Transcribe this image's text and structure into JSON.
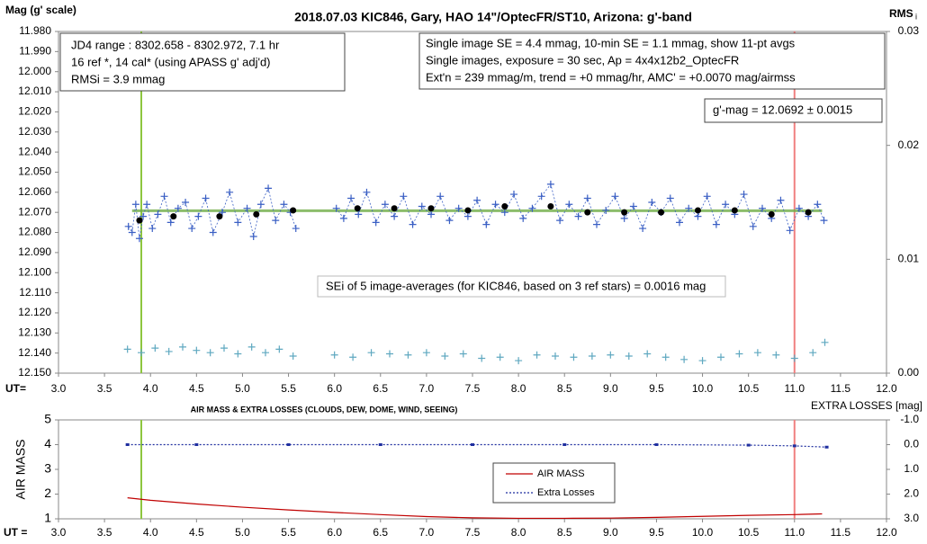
{
  "chart_data": [
    {
      "type": "scatter",
      "title": "2018.07.03  KIC846,  Gary, HAO 14\"/OptecFR/ST10,  Arizona:  g'-band",
      "y_label": "Mag (g' scale)",
      "y2_label": "RMS",
      "y2_label_sub": "i",
      "x_label": "UT=",
      "xlim": [
        3,
        12
      ],
      "xticks": [
        {
          "value": 3,
          "label": "3.0"
        },
        {
          "value": 3.5,
          "label": "3.5"
        },
        {
          "value": 4,
          "label": "4.0"
        },
        {
          "value": 4.5,
          "label": "4.5"
        },
        {
          "value": 5,
          "label": "5.0"
        },
        {
          "value": 5.5,
          "label": "5.5"
        },
        {
          "value": 6,
          "label": "6.0"
        },
        {
          "value": 6.5,
          "label": "6.5"
        },
        {
          "value": 7,
          "label": "7.0"
        },
        {
          "value": 7.5,
          "label": "7.5"
        },
        {
          "value": 8,
          "label": "8.0"
        },
        {
          "value": 8.5,
          "label": "8.5"
        },
        {
          "value": 9,
          "label": "9.0"
        },
        {
          "value": 9.5,
          "label": "9.5"
        },
        {
          "value": 10,
          "label": "10.0"
        },
        {
          "value": 10.5,
          "label": "10.5"
        },
        {
          "value": 11,
          "label": "11.0"
        },
        {
          "value": 11.5,
          "label": "11.5"
        },
        {
          "value": 12,
          "label": "12.0"
        }
      ],
      "ylim": [
        11.98,
        12.15
      ],
      "y_inverted": true,
      "yticks": [
        {
          "value": 11.98,
          "label": "11.980"
        },
        {
          "value": 11.99,
          "label": "11.990"
        },
        {
          "value": 12.0,
          "label": "12.000"
        },
        {
          "value": 12.01,
          "label": "12.010"
        },
        {
          "value": 12.02,
          "label": "12.020"
        },
        {
          "value": 12.03,
          "label": "12.030"
        },
        {
          "value": 12.04,
          "label": "12.040"
        },
        {
          "value": 12.05,
          "label": "12.050"
        },
        {
          "value": 12.06,
          "label": "12.060"
        },
        {
          "value": 12.07,
          "label": "12.070"
        },
        {
          "value": 12.08,
          "label": "12.080"
        },
        {
          "value": 12.09,
          "label": "12.090"
        },
        {
          "value": 12.1,
          "label": "12.100"
        },
        {
          "value": 12.11,
          "label": "12.110"
        },
        {
          "value": 12.12,
          "label": "12.120"
        },
        {
          "value": 12.13,
          "label": "12.130"
        },
        {
          "value": 12.14,
          "label": "12.140"
        },
        {
          "value": 12.15,
          "label": "12.150"
        }
      ],
      "y2lim": [
        0,
        0.03
      ],
      "y2ticks": [
        {
          "value": 0,
          "label": "0.00"
        },
        0.01,
        0.02,
        0.03
      ],
      "vlines": [
        {
          "value": 3.9,
          "color": "#8dc63f"
        },
        {
          "value": 11.0,
          "color": "#f08080"
        }
      ],
      "mean_line": {
        "value": 12.0692,
        "color": "#70ad47"
      },
      "series": [
        {
          "name": "Single images",
          "color": "#3a5fc4",
          "marker": "cross",
          "x": [
            3.76,
            3.8,
            3.84,
            3.88,
            3.92,
            3.96,
            4.02,
            4.08,
            4.15,
            4.22,
            4.3,
            4.38,
            4.45,
            4.52,
            4.6,
            4.68,
            4.78,
            4.86,
            4.95,
            5.05,
            5.12,
            5.2,
            5.28,
            5.36,
            5.45,
            5.52,
            5.58,
            5.8,
            6.02,
            6.1,
            6.18,
            6.26,
            6.35,
            6.45,
            6.55,
            6.65,
            6.75,
            6.85,
            6.95,
            7.05,
            7.15,
            7.25,
            7.35,
            7.45,
            7.55,
            7.65,
            7.75,
            7.85,
            7.95,
            8.05,
            8.15,
            8.25,
            8.35,
            8.45,
            8.55,
            8.65,
            8.75,
            8.85,
            8.95,
            9.05,
            9.15,
            9.25,
            9.35,
            9.45,
            9.55,
            9.65,
            9.75,
            9.85,
            9.95,
            10.05,
            10.15,
            10.25,
            10.35,
            10.45,
            10.55,
            10.65,
            10.75,
            10.85,
            10.95,
            11.05,
            11.15,
            11.25,
            11.32
          ],
          "values": [
            12.077,
            12.08,
            12.066,
            12.083,
            12.072,
            12.066,
            12.078,
            12.071,
            12.062,
            12.075,
            12.068,
            12.065,
            12.078,
            12.072,
            12.063,
            12.08,
            12.07,
            12.06,
            12.075,
            12.068,
            12.082,
            12.066,
            12.058,
            12.074,
            12.066,
            12.07,
            12.078,
            null,
            12.068,
            12.073,
            12.063,
            12.071,
            12.06,
            12.075,
            12.066,
            12.072,
            12.062,
            12.076,
            12.067,
            12.071,
            12.062,
            12.074,
            12.068,
            12.072,
            12.064,
            12.076,
            12.066,
            12.07,
            12.061,
            12.073,
            12.068,
            12.062,
            12.056,
            12.074,
            12.066,
            12.072,
            12.063,
            12.076,
            12.069,
            12.062,
            12.073,
            12.067,
            12.078,
            12.065,
            12.07,
            12.063,
            12.075,
            12.068,
            12.072,
            12.062,
            12.076,
            12.066,
            12.071,
            12.061,
            12.077,
            12.068,
            12.073,
            12.064,
            12.079,
            12.068,
            12.072,
            12.066,
            12.074
          ]
        },
        {
          "name": "11-pt avgs",
          "color": "#000000",
          "marker": "dot",
          "x": [
            3.88,
            4.25,
            4.75,
            5.15,
            5.55,
            6.25,
            6.65,
            7.05,
            7.45,
            7.85,
            8.35,
            8.75,
            9.15,
            9.55,
            9.95,
            10.35,
            10.75,
            11.15
          ],
          "values": [
            12.074,
            12.072,
            12.072,
            12.071,
            12.069,
            12.068,
            12.068,
            12.068,
            12.069,
            12.067,
            12.067,
            12.07,
            12.07,
            12.07,
            12.069,
            12.069,
            12.071,
            12.07
          ]
        },
        {
          "name": "RMSi",
          "color": "#5fa8c0",
          "marker": "cross",
          "axis": "y2",
          "x": [
            3.75,
            3.9,
            4.05,
            4.2,
            4.35,
            4.5,
            4.65,
            4.8,
            4.95,
            5.1,
            5.25,
            5.4,
            5.55,
            6.0,
            6.2,
            6.4,
            6.6,
            6.8,
            7.0,
            7.2,
            7.4,
            7.6,
            7.8,
            8.0,
            8.2,
            8.4,
            8.6,
            8.8,
            9.0,
            9.2,
            9.4,
            9.6,
            9.8,
            10.0,
            10.2,
            10.4,
            10.6,
            10.8,
            11.0,
            11.2,
            11.33
          ],
          "values": [
            0.0021,
            0.0018,
            0.0022,
            0.0019,
            0.0023,
            0.002,
            0.0018,
            0.0022,
            0.0017,
            0.0023,
            0.0018,
            0.0021,
            0.0015,
            0.0016,
            0.0014,
            0.0018,
            0.0017,
            0.0016,
            0.0018,
            0.0015,
            0.0017,
            0.0013,
            0.0014,
            0.0011,
            0.0016,
            0.0015,
            0.0014,
            0.0015,
            0.0016,
            0.0015,
            0.0017,
            0.0014,
            0.0012,
            0.0011,
            0.0014,
            0.0017,
            0.0018,
            0.0016,
            0.0013,
            0.0018,
            0.0027
          ]
        }
      ],
      "annotations": {
        "left_box": [
          "JD4 range : 8302.658 - 8302.972,  7.1  hr",
          "16 ref *, 14 cal* (using APASS g' adj'd)",
          "RMSi = 3.9 mmag"
        ],
        "right_box": [
          "Single image SE = 4.4 mmag, 10-min SE = 1.1 mmag, show  11-pt avgs",
          "Single images, exposure = 30 sec, Ap = 4x4x12b2_OptecFR",
          "Ext'n = 239 mmag/m, trend =  +0 mmag/hr, AMC' = +0.0070 mag/airmss"
        ],
        "mean_box": "g'-mag = 12.0692 ± 0.0015",
        "sei_box": "SEi of 5 image-averages (for KIC846, based on 3 ref stars) = 0.0016 mag"
      }
    },
    {
      "type": "line",
      "title": "AIR MASS & EXTRA LOSSES (CLOUDS, DEW, DOME, WIND, SEEING)",
      "y_label": "AIR MASS",
      "y2_label": "EXTRA LOSSES [mag]",
      "x_label": "UT =",
      "xlim": [
        3,
        12
      ],
      "xticks": [
        {
          "value": 3,
          "label": "3.0"
        },
        {
          "value": 3.5,
          "label": "3.5"
        },
        {
          "value": 4,
          "label": "4.0"
        },
        {
          "value": 4.5,
          "label": "4.5"
        },
        {
          "value": 5,
          "label": "5.0"
        },
        {
          "value": 5.5,
          "label": "5.5"
        },
        {
          "value": 6,
          "label": "6.0"
        },
        {
          "value": 6.5,
          "label": "6.5"
        },
        {
          "value": 7,
          "label": "7.0"
        },
        {
          "value": 7.5,
          "label": "7.5"
        },
        {
          "value": 8,
          "label": "8.0"
        },
        {
          "value": 8.5,
          "label": "8.5"
        },
        {
          "value": 9,
          "label": "9.0"
        },
        {
          "value": 9.5,
          "label": "9.5"
        },
        {
          "value": 10,
          "label": "10.0"
        },
        {
          "value": 10.5,
          "label": "10.5"
        },
        {
          "value": 11,
          "label": "11.0"
        },
        {
          "value": 11.5,
          "label": "11.5"
        },
        {
          "value": 12,
          "label": "12.0"
        }
      ],
      "ylim": [
        1,
        5
      ],
      "yticks": [
        1,
        2,
        3,
        4,
        5
      ],
      "y2lim": [
        -1,
        3
      ],
      "y2_inverted": true,
      "y2ticks": [
        {
          "value": -1,
          "label": "-1.0"
        },
        {
          "value": 0,
          "label": "0.0"
        },
        {
          "value": 1,
          "label": "1.0"
        },
        {
          "value": 2,
          "label": "2.0"
        },
        {
          "value": 3,
          "label": "3.0"
        }
      ],
      "vlines": [
        {
          "value": 3.9,
          "color": "#8dc63f"
        },
        {
          "value": 11.0,
          "color": "#f08080"
        }
      ],
      "series": [
        {
          "name": "AIR MASS",
          "color": "#c00000",
          "x": [
            3.75,
            4.0,
            4.5,
            5.0,
            5.5,
            6.0,
            6.5,
            7.0,
            7.5,
            8.0,
            8.5,
            9.0,
            9.5,
            10.0,
            10.5,
            11.0,
            11.3
          ],
          "values": [
            1.85,
            1.75,
            1.6,
            1.47,
            1.36,
            1.26,
            1.17,
            1.09,
            1.04,
            1.02,
            1.02,
            1.03,
            1.06,
            1.1,
            1.14,
            1.17,
            1.2
          ]
        },
        {
          "name": "Extra Losses",
          "color": "#1f2f9f",
          "axis": "y2",
          "dashed": true,
          "x": [
            3.75,
            4.5,
            5.5,
            6.5,
            7.5,
            8.5,
            9.5,
            10.5,
            11.0,
            11.35
          ],
          "values": [
            0.0,
            0.0,
            0.0,
            0.0,
            0.0,
            0.0,
            0.0,
            0.02,
            0.05,
            0.1
          ]
        }
      ]
    }
  ]
}
